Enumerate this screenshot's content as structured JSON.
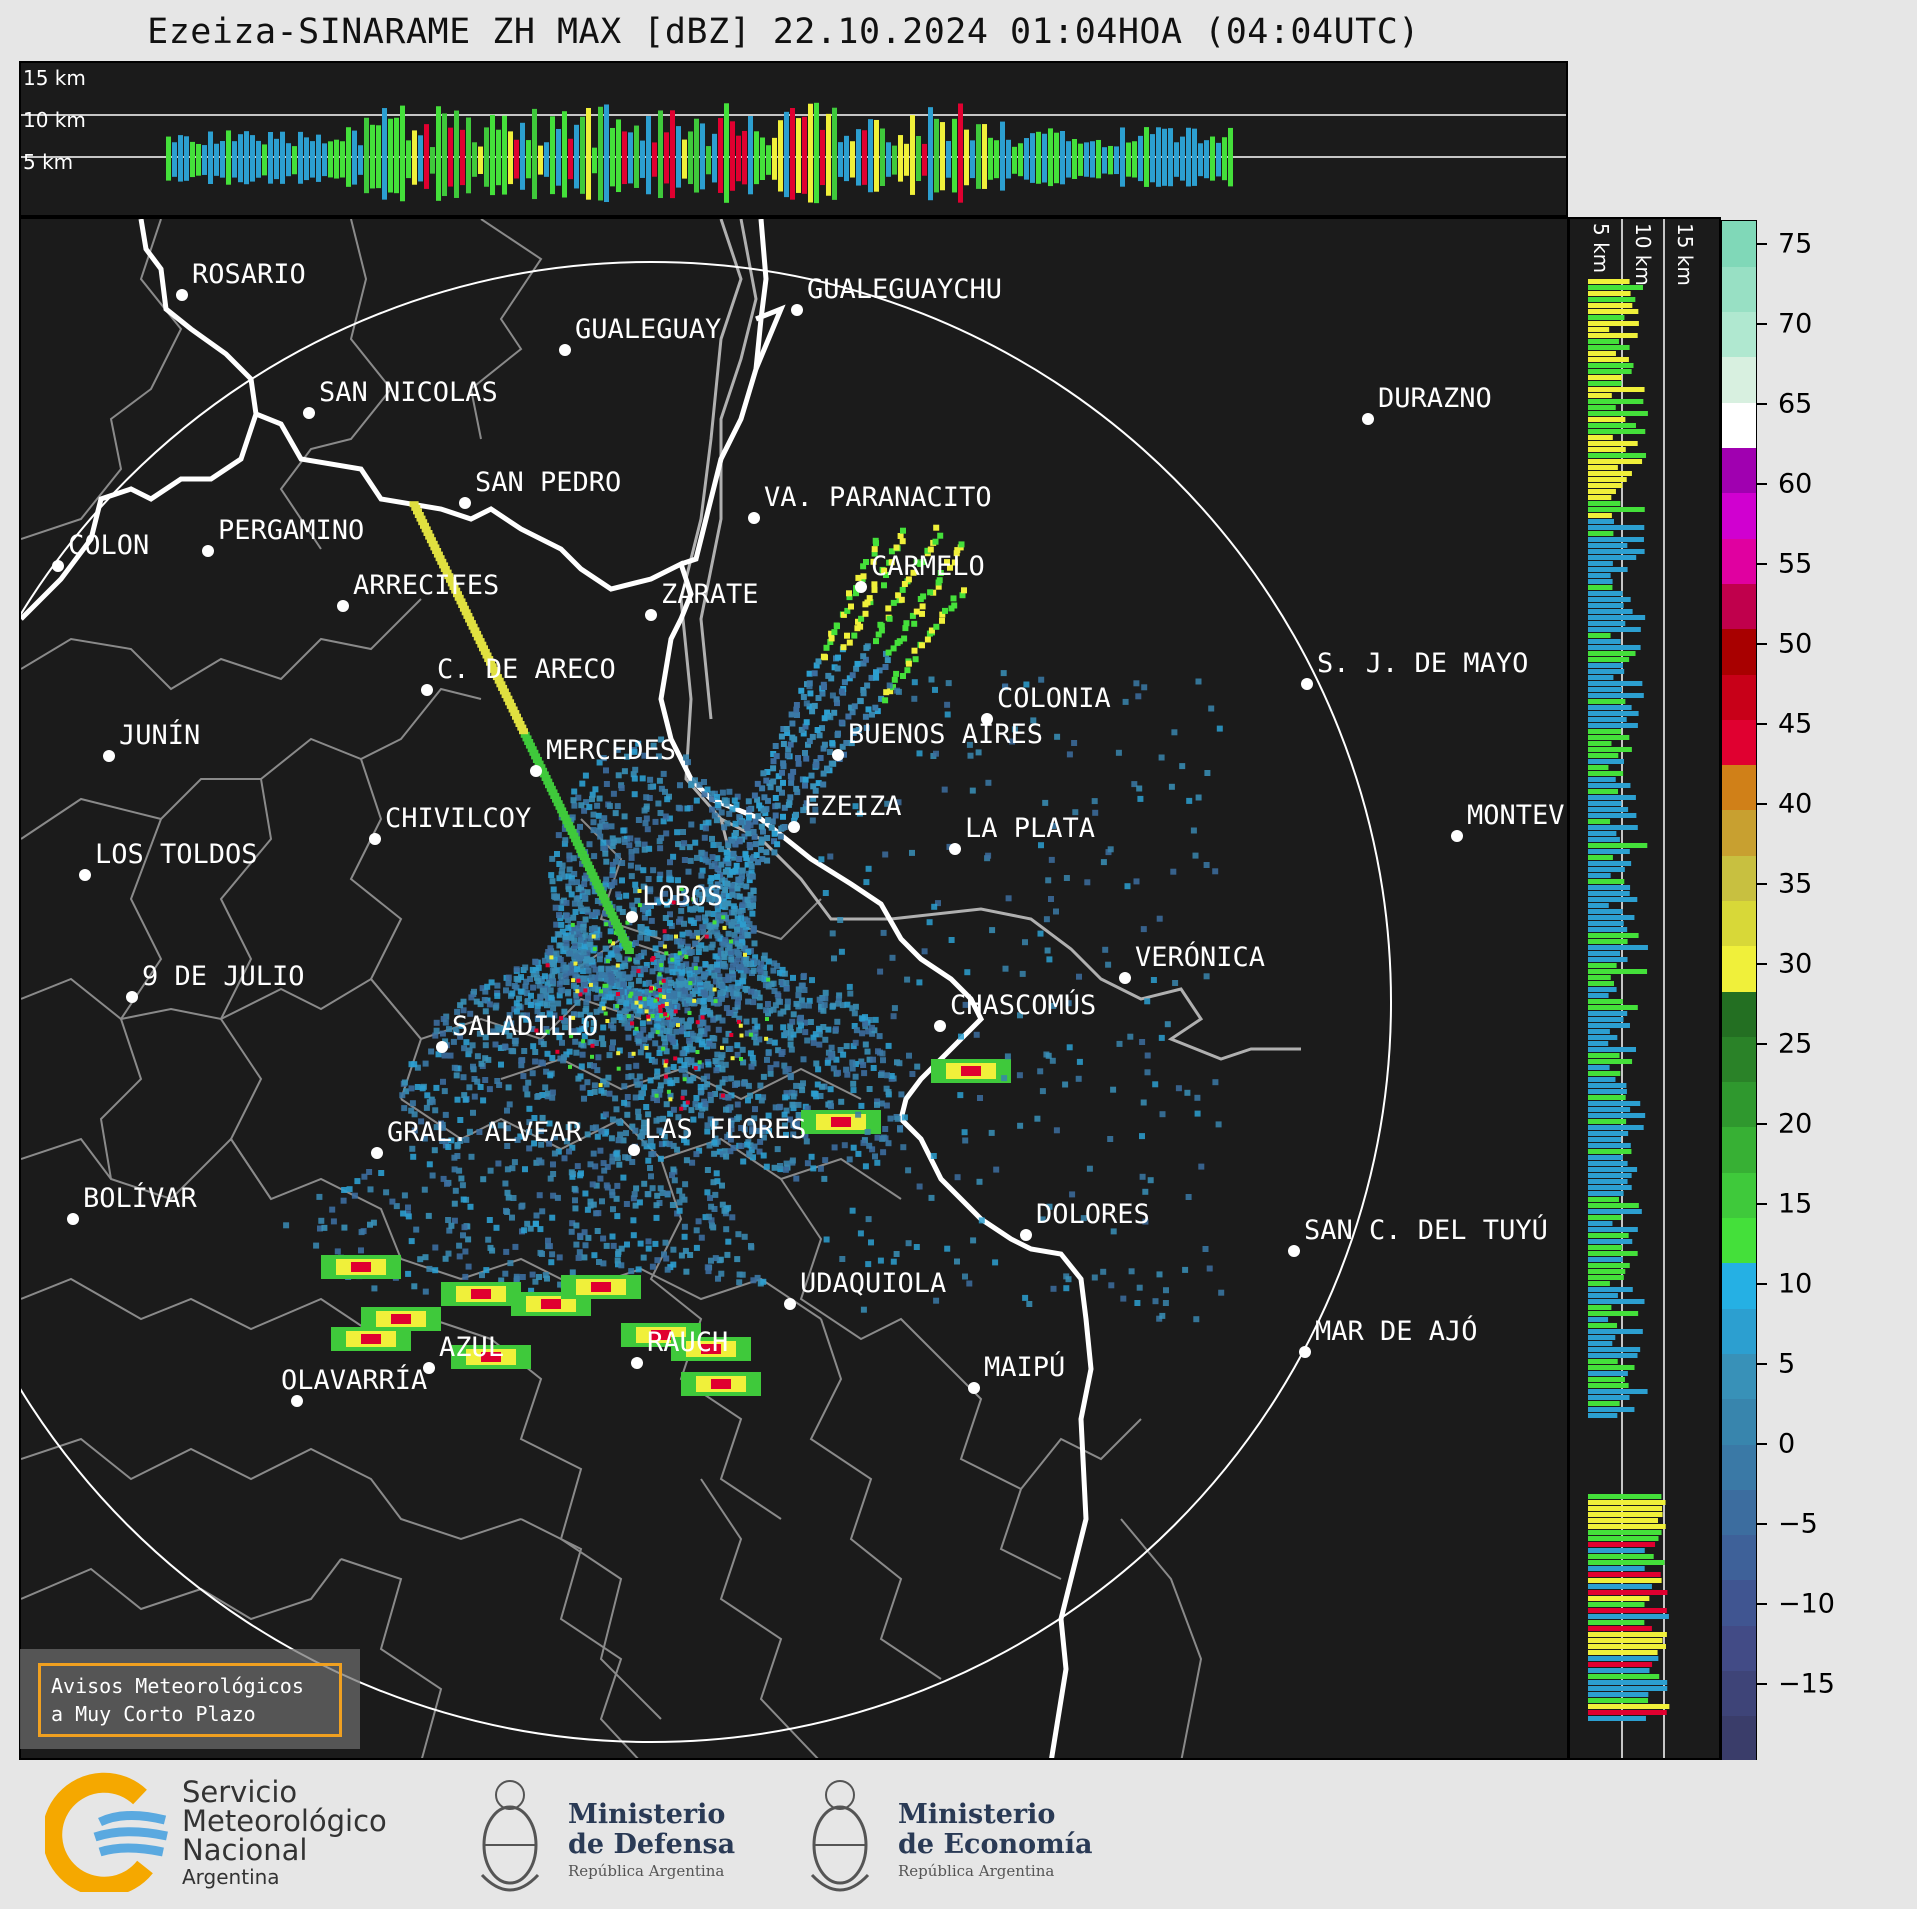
{
  "title": "Ezeiza-SINARAME ZH MAX [dBZ] 22.10.2024 01:04HOA (04:04UTC)",
  "top_panel": {
    "height_labels": [
      "15 km",
      "10 km",
      "5 km"
    ]
  },
  "side_panel": {
    "height_labels": [
      "5 km",
      "10 km",
      "15 km"
    ]
  },
  "colorbar": {
    "ticks": [
      "75",
      "70",
      "65",
      "60",
      "55",
      "50",
      "45",
      "40",
      "35",
      "30",
      "25",
      "20",
      "15",
      "10",
      "5",
      "0",
      "−5",
      "−10",
      "−15"
    ],
    "range": [
      -20,
      77
    ],
    "colors": [
      "#3a3d6a",
      "#3e4478",
      "#424b86",
      "#405591",
      "#3e6199",
      "#3c6d9f",
      "#3a79a6",
      "#3885ad",
      "#3891b8",
      "#2c9fd0",
      "#25b0e4",
      "#44e03a",
      "#3fc93b",
      "#37b034",
      "#2f982e",
      "#2a8228",
      "#236f22",
      "#f0f03a",
      "#d8d838",
      "#c8c040",
      "#c8a030",
      "#d08018",
      "#e00030",
      "#c80018",
      "#a80000",
      "#c0004c",
      "#e000a0",
      "#d000d0",
      "#a000b0",
      "#ffffff",
      "#d8f0e0",
      "#b0e8d0",
      "#98e0c4",
      "#80d8b8"
    ]
  },
  "cities": [
    {
      "name": "ROSARIO"
    },
    {
      "name": "GUALEGUAYCHU"
    },
    {
      "name": "GUALEGUAY"
    },
    {
      "name": "SAN NICOLAS"
    },
    {
      "name": "DURAZNO"
    },
    {
      "name": "SAN PEDRO"
    },
    {
      "name": "VA. PARANACITO"
    },
    {
      "name": "COLON"
    },
    {
      "name": "PERGAMINO"
    },
    {
      "name": "CARMELO"
    },
    {
      "name": "ARRECIFES"
    },
    {
      "name": "ZARATE"
    },
    {
      "name": "S. J. DE MAYO"
    },
    {
      "name": "C. DE ARECO"
    },
    {
      "name": "COLONIA"
    },
    {
      "name": "BUENOS AIRES"
    },
    {
      "name": "JUNÍN"
    },
    {
      "name": "MERCEDES"
    },
    {
      "name": "EZEIZA"
    },
    {
      "name": "MONTEV"
    },
    {
      "name": "CHIVILCOY"
    },
    {
      "name": "LA PLATA"
    },
    {
      "name": "LOS TOLDOS"
    },
    {
      "name": "LOBOS"
    },
    {
      "name": "VERÓNICA"
    },
    {
      "name": "9 DE JULIO"
    },
    {
      "name": "CHASCOMÚS"
    },
    {
      "name": "SALADILLO"
    },
    {
      "name": "GRAL. ALVEAR"
    },
    {
      "name": "LAS FLORES"
    },
    {
      "name": "BOLÍVAR"
    },
    {
      "name": "DOLORES"
    },
    {
      "name": "SAN C. DEL TUYÚ"
    },
    {
      "name": "UDAQUIOLA"
    },
    {
      "name": "RAUCH"
    },
    {
      "name": "AZUL"
    },
    {
      "name": "OLAVARRÍA"
    },
    {
      "name": "MAR DE AJÓ"
    },
    {
      "name": "MAIPÚ"
    }
  ],
  "avisos": {
    "line1": "Avisos Meteorológicos",
    "line2": "a Muy Corto Plazo"
  },
  "footer": {
    "smn": {
      "line1": "Servicio",
      "line2": "Meteorológico",
      "line3": "Nacional",
      "line4": "Argentina"
    },
    "defensa": {
      "line1": "Ministerio",
      "line2": "de Defensa",
      "line3": "República Argentina"
    },
    "economia": {
      "line1": "Ministerio",
      "line2": "de Economía",
      "line3": "República Argentina"
    }
  }
}
